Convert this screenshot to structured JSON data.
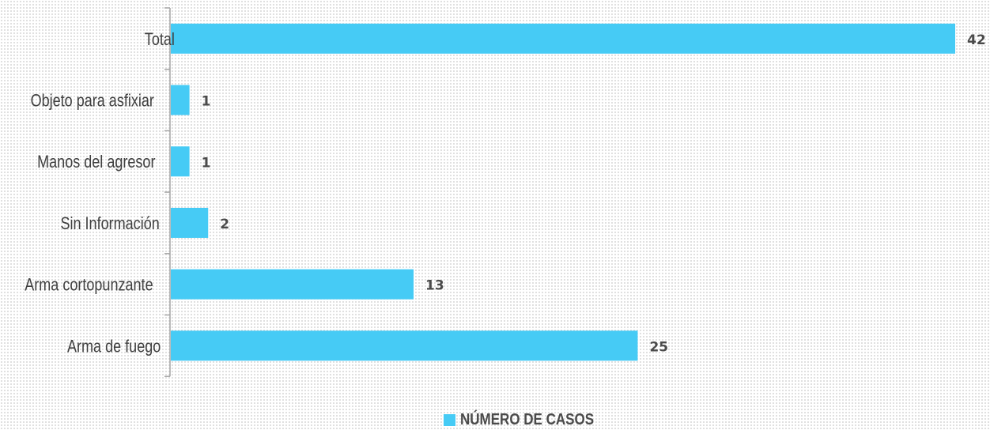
{
  "colors": {
    "bar": "#46CBF5",
    "axis": "#a6a6a6",
    "text": "#3f3f3f"
  },
  "legend": {
    "label": "NÚMERO DE CASOS"
  },
  "chart_data": {
    "type": "bar",
    "orientation": "horizontal",
    "categories": [
      "Total",
      "Objeto para asfixiar",
      "Manos del agresor",
      "Sin Información",
      "Arma cortopunzante",
      "Arma de fuego"
    ],
    "series": [
      {
        "name": "NÚMERO DE CASOS",
        "values": [
          42,
          1,
          1,
          2,
          13,
          25
        ]
      }
    ],
    "xlim": [
      0,
      42
    ],
    "grid": false,
    "legend_position": "bottom",
    "data_labels": true
  }
}
